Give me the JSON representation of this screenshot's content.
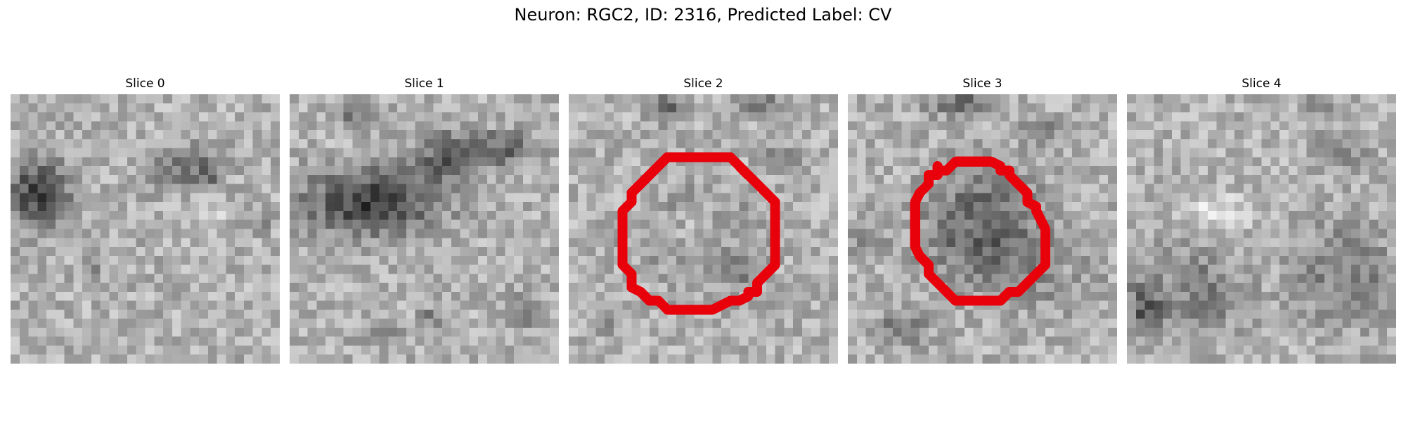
{
  "title": "Neuron: RGC2, ID: 2316, Predicted Label: CV",
  "slices": [
    {
      "title": "Slice 0",
      "contour": false
    },
    {
      "title": "Slice 1",
      "contour": false
    },
    {
      "title": "Slice 2",
      "contour": true
    },
    {
      "title": "Slice 3",
      "contour": true
    },
    {
      "title": "Slice 4",
      "contour": false
    }
  ],
  "colors": {
    "background": "#ffffff",
    "contour": "#e8000b",
    "colormap": "gray"
  }
}
